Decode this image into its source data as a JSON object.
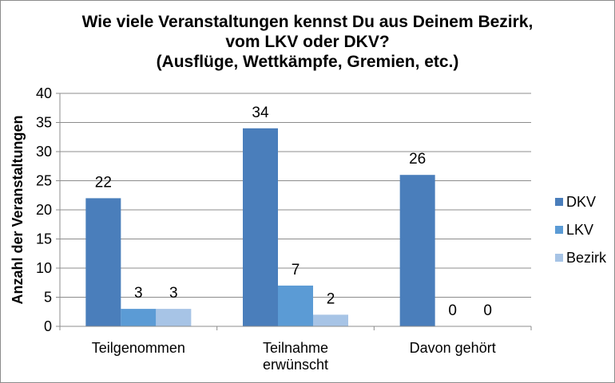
{
  "chart_data": {
    "type": "bar",
    "title_lines": [
      "Wie viele Veranstaltungen kennst Du aus Deinem Bezirk,",
      "vom LKV oder DKV?",
      "(Ausflüge, Wettkämpfe, Gremien, etc.)"
    ],
    "ylabel": "Anzahl der Veranstaltungen",
    "xlabel": "",
    "ylim": [
      0,
      40
    ],
    "yticks": [
      0,
      5,
      10,
      15,
      20,
      25,
      30,
      35,
      40
    ],
    "categories": [
      [
        "Teilgenommen"
      ],
      [
        "Teilnahme",
        "erwünscht"
      ],
      [
        "Davon gehört"
      ]
    ],
    "series": [
      {
        "name": "DKV",
        "color": "#4a7ebb",
        "values": [
          22,
          34,
          26
        ]
      },
      {
        "name": "LKV",
        "color": "#5b9bd5",
        "values": [
          3,
          7,
          0
        ]
      },
      {
        "name": "Bezirk",
        "color": "#a7c4e6",
        "values": [
          3,
          2,
          0
        ]
      }
    ],
    "data_labels": true,
    "grid": true,
    "legend": "right"
  }
}
